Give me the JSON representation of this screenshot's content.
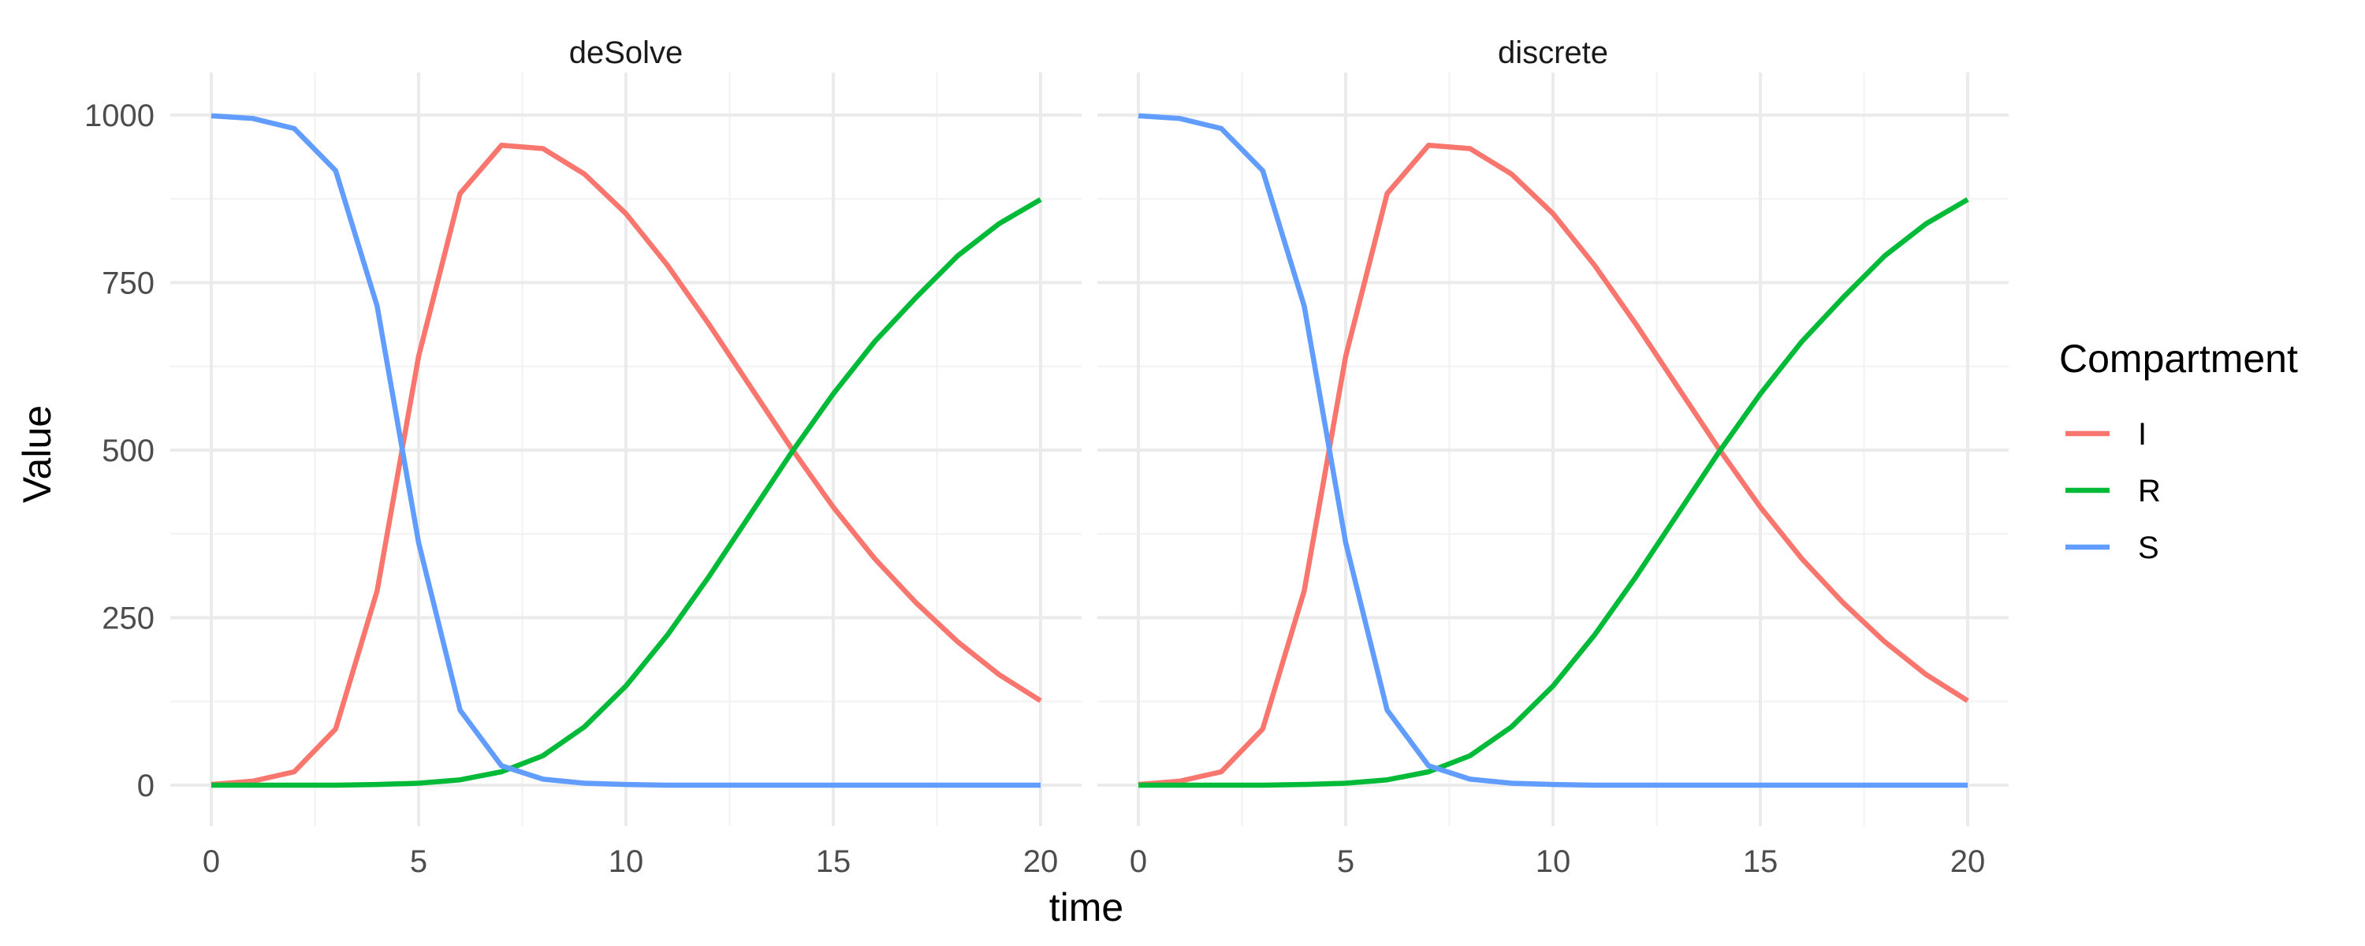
{
  "chart_data": {
    "type": "line",
    "ylabel": "Value",
    "xlabel": "time",
    "ylim": [
      0,
      1000
    ],
    "xlim": [
      0,
      20
    ],
    "x_ticks": [
      "0",
      "5",
      "10",
      "15",
      "20"
    ],
    "y_ticks": [
      "0",
      "250",
      "500",
      "750",
      "1000"
    ],
    "grid": true,
    "legend": {
      "title": "Compartment",
      "placement": "right",
      "entries": [
        {
          "name": "I",
          "color": "#F8766D"
        },
        {
          "name": "R",
          "color": "#00BA38"
        },
        {
          "name": "S",
          "color": "#619CFF"
        }
      ]
    },
    "x": [
      0,
      1,
      2,
      3,
      4,
      5,
      6,
      7,
      8,
      9,
      10,
      11,
      12,
      13,
      14,
      15,
      16,
      17,
      18,
      19,
      20
    ],
    "panels": [
      {
        "title": "deSolve",
        "series": [
          {
            "name": "I",
            "color": "#F8766D",
            "values": [
              1,
              6,
              20,
              84,
              290,
              640,
              883,
              955,
              950,
              912,
              853,
              776,
              688,
              595,
              502,
              415,
              338,
              272,
              214,
              165,
              126
            ]
          },
          {
            "name": "R",
            "color": "#00BA38",
            "values": [
              0,
              0,
              0,
              0,
              1,
              3,
              8,
              20,
              44,
              87,
              148,
              224,
              311,
              404,
              497,
              584,
              662,
              728,
              790,
              838,
              874
            ]
          },
          {
            "name": "S",
            "color": "#619CFF",
            "values": [
              999,
              995,
              980,
              917,
              715,
              362,
              112,
              29,
              9,
              3,
              1,
              0,
              0,
              0,
              0,
              0,
              0,
              0,
              0,
              0,
              0
            ]
          }
        ]
      },
      {
        "title": "discrete",
        "series": [
          {
            "name": "I",
            "color": "#F8766D",
            "values": [
              1,
              6,
              20,
              84,
              290,
              640,
              883,
              955,
              950,
              912,
              853,
              776,
              688,
              595,
              502,
              415,
              338,
              272,
              214,
              165,
              126
            ]
          },
          {
            "name": "R",
            "color": "#00BA38",
            "values": [
              0,
              0,
              0,
              0,
              1,
              3,
              8,
              20,
              44,
              87,
              148,
              224,
              311,
              404,
              497,
              584,
              662,
              728,
              790,
              838,
              874
            ]
          },
          {
            "name": "S",
            "color": "#619CFF",
            "values": [
              999,
              995,
              980,
              917,
              715,
              362,
              112,
              29,
              9,
              3,
              1,
              0,
              0,
              0,
              0,
              0,
              0,
              0,
              0,
              0,
              0
            ]
          }
        ]
      }
    ]
  }
}
